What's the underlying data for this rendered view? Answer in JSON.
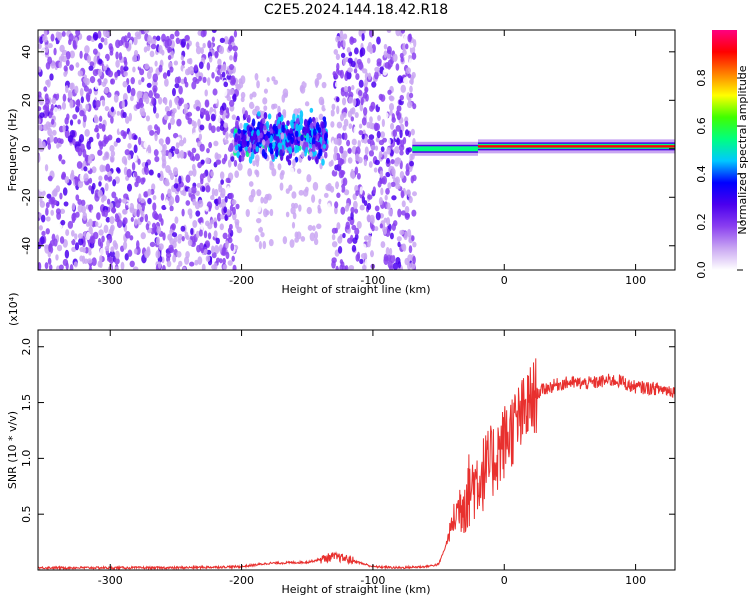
{
  "title": "C2E5.2024.144.18.42.R18",
  "chart_data": [
    {
      "type": "heatmap",
      "xlabel": "Height of straight line (km)",
      "ylabel": "Frequency (Hz)",
      "xlim": [
        -355,
        130
      ],
      "ylim": [
        -50,
        49
      ],
      "xticks": [
        -300,
        -200,
        -100,
        0,
        100
      ],
      "xtick_labels": [
        "-300",
        "-200",
        "-100",
        "0",
        "100"
      ],
      "yticks": [
        -40,
        -20,
        0,
        20,
        40
      ],
      "ytick_labels": [
        "-40",
        "-20",
        "0",
        "20",
        "40"
      ],
      "colorbar": {
        "label": "Normalized spectral amplitude",
        "range": [
          0,
          1
        ],
        "ticks": [
          0.0,
          0.2,
          0.4,
          0.6,
          0.8
        ],
        "tick_labels": [
          "0.0",
          "0.2",
          "0.4",
          "0.6",
          "0.8"
        ],
        "colormap": [
          "#ffffff",
          "#c9a6f2",
          "#8a3ff0",
          "#4b00ee",
          "#0000ff",
          "#00c8ff",
          "#00ff80",
          "#40ff00",
          "#ffff00",
          "#ff8000",
          "#ff0000",
          "#ff0080"
        ]
      },
      "features": [
        {
          "name": "noise",
          "x_range": [
            -355,
            -203
          ],
          "freq_range": [
            -50,
            49
          ],
          "level": 0.1
        },
        {
          "name": "sparse",
          "x_range": [
            -203,
            -130
          ],
          "freq_range": [
            -40,
            30
          ],
          "level": 0.05
        },
        {
          "name": "band",
          "x_range": [
            -205,
            -135
          ],
          "center_freq": 5,
          "level": 0.3
        },
        {
          "name": "noise",
          "x_range": [
            -130,
            -68
          ],
          "freq_range": [
            -50,
            49
          ],
          "level": 0.1
        },
        {
          "name": "carrier",
          "x_range": [
            -70,
            -20
          ],
          "center_freq": 0,
          "level": 0.55
        },
        {
          "name": "carrier",
          "x_range": [
            -20,
            130
          ],
          "center_freq": 1,
          "level": 0.9
        }
      ]
    },
    {
      "type": "line",
      "xlabel": "Height of straight line (km)",
      "ylabel": "SNR (10 * v/v)",
      "y_multiplier_label": "(x10⁴)",
      "xlim": [
        -355,
        130
      ],
      "ylim": [
        0,
        2.15
      ],
      "xticks": [
        -300,
        -200,
        -100,
        0,
        100
      ],
      "xtick_labels": [
        "-300",
        "-200",
        "-100",
        "0",
        "100"
      ],
      "yticks": [
        0.5,
        1.0,
        1.5,
        2.0
      ],
      "ytick_labels": [
        "0.5",
        "1.0",
        "1.5",
        "2.0"
      ],
      "line_color": "#e8302e",
      "series": [
        {
          "x": [
            -355,
            -300,
            -250,
            -200,
            -180,
            -150,
            -130,
            -120,
            -100,
            -80,
            -60,
            -50,
            -45,
            -40,
            -35,
            -30,
            -25,
            -20,
            -15,
            -10,
            -5,
            0,
            5,
            10,
            15,
            20,
            25,
            30,
            40,
            50,
            60,
            70,
            80,
            90,
            95,
            100,
            110,
            120,
            130
          ],
          "values": [
            0.02,
            0.02,
            0.02,
            0.03,
            0.06,
            0.07,
            0.12,
            0.1,
            0.03,
            0.02,
            0.03,
            0.05,
            0.2,
            0.4,
            0.55,
            0.65,
            0.75,
            0.82,
            0.88,
            0.95,
            1.05,
            1.15,
            1.25,
            1.32,
            1.4,
            1.5,
            1.58,
            1.62,
            1.66,
            1.68,
            1.67,
            1.68,
            1.7,
            1.69,
            1.65,
            1.64,
            1.63,
            1.62,
            1.6
          ]
        }
      ]
    }
  ]
}
